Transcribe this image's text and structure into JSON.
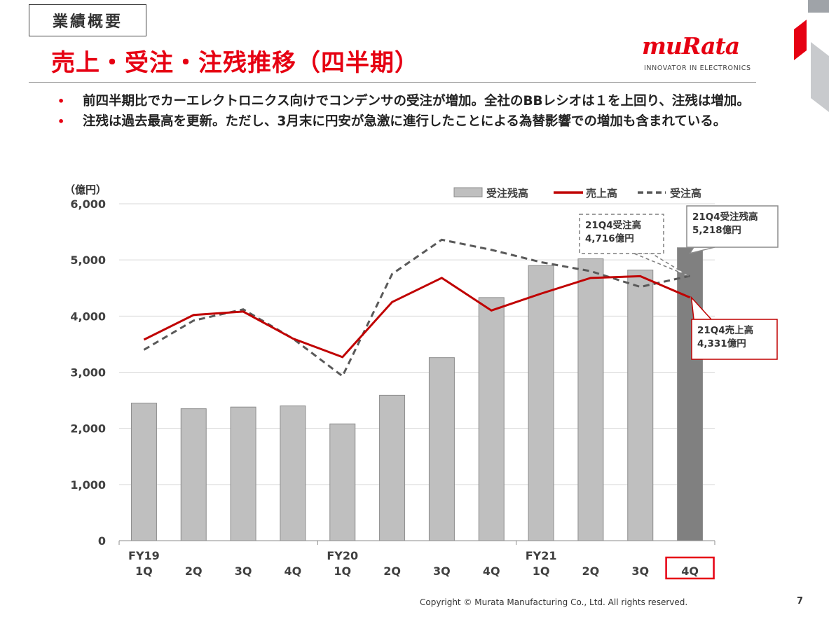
{
  "header": {
    "section": "業績概要",
    "title": "売上・受注・注残推移（四半期）",
    "logo_text": "muRata",
    "logo_tagline": "INNOVATOR IN ELECTRONICS"
  },
  "bullets": [
    "前四半期比でカーエレクトロニクス向けでコンデンサの受注が増加。全社のBBレシオは１を上回り、注残は増加。",
    "注残は過去最高を更新。ただし、3月末に円安が急激に進行したことによる為替影響での増加も含まれている。"
  ],
  "colors": {
    "brand": "#e60012",
    "bar": "#bfbfbf",
    "bar_highlight": "#808080",
    "sales_line": "#c00000",
    "orders_line": "#595959"
  },
  "chart_data": {
    "type": "bar",
    "unit_label": "（億円）",
    "ylim": [
      0,
      6000
    ],
    "yticks": [
      "0",
      "1,000",
      "2,000",
      "3,000",
      "4,000",
      "5,000",
      "6,000"
    ],
    "categories": [
      "FY19 1Q",
      "2Q",
      "3Q",
      "4Q",
      "FY20 1Q",
      "2Q",
      "3Q",
      "4Q",
      "FY21 1Q",
      "2Q",
      "3Q",
      "4Q"
    ],
    "category_labels": [
      {
        "fy": "FY19",
        "q": "1Q"
      },
      {
        "fy": "",
        "q": "2Q"
      },
      {
        "fy": "",
        "q": "3Q"
      },
      {
        "fy": "",
        "q": "4Q"
      },
      {
        "fy": "FY20",
        "q": "1Q"
      },
      {
        "fy": "",
        "q": "2Q"
      },
      {
        "fy": "",
        "q": "3Q"
      },
      {
        "fy": "",
        "q": "4Q"
      },
      {
        "fy": "FY21",
        "q": "1Q"
      },
      {
        "fy": "",
        "q": "2Q"
      },
      {
        "fy": "",
        "q": "3Q"
      },
      {
        "fy": "",
        "q": "4Q"
      }
    ],
    "series": [
      {
        "name": "受注残高",
        "kind": "bar",
        "values": [
          2450,
          2350,
          2380,
          2400,
          2080,
          2590,
          3260,
          4330,
          4900,
          5020,
          4820,
          5218
        ]
      },
      {
        "name": "売上高",
        "kind": "line",
        "values": [
          3580,
          4020,
          4080,
          3600,
          3270,
          4250,
          4680,
          4100,
          4400,
          4680,
          4710,
          4331
        ]
      },
      {
        "name": "受注高",
        "kind": "dashed-line",
        "values": [
          3400,
          3920,
          4120,
          3600,
          2930,
          4750,
          5360,
          5180,
          4960,
          4800,
          4520,
          4716
        ]
      }
    ],
    "legend": [
      "受注残高",
      "売上高",
      "受注高"
    ],
    "legend_position": "top-right",
    "highlight_index": 11,
    "callouts": [
      {
        "line1": "21Q4受注残高",
        "line2": "5,218億円",
        "style": "solid-gray"
      },
      {
        "line1": "21Q4受注高",
        "line2": "4,716億円",
        "style": "dashed-gray"
      },
      {
        "line1": "21Q4売上高",
        "line2": "4,331億円",
        "style": "solid-red"
      }
    ]
  },
  "footer": {
    "copyright": "Copyright © Murata Manufacturing Co., Ltd. All rights reserved.",
    "page": "7"
  }
}
